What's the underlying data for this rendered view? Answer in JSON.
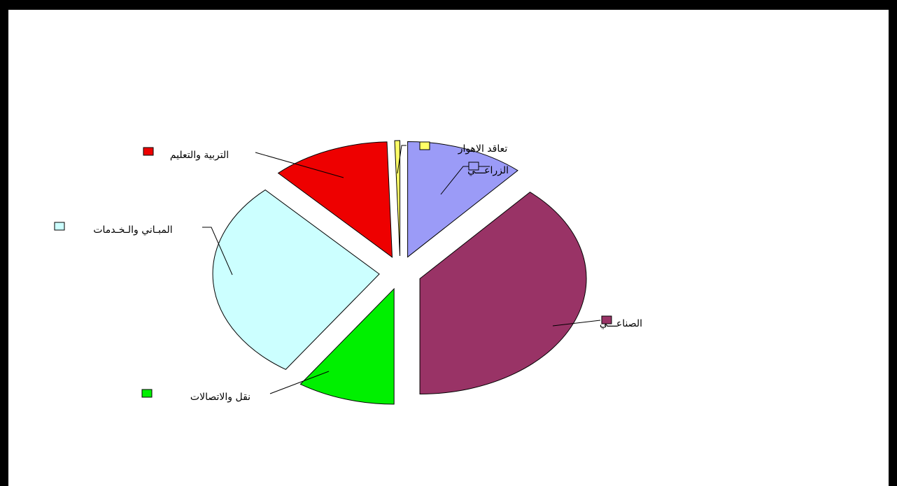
{
  "chart_data": {
    "type": "pie",
    "exploded": true,
    "slices": [
      {
        "label": "الزراعـــي",
        "value": 11.5,
        "color": "#9b9bf7"
      },
      {
        "label": "الصناعـــي",
        "value": 38.5,
        "color": "#993366"
      },
      {
        "label": "نقل والاتصالات",
        "value": 9.5,
        "color": "#00f000"
      },
      {
        "label": "المبـاني والـخـدمات",
        "value": 28.5,
        "color": "#ccffff"
      },
      {
        "label": "التربية والتعليم",
        "value": 11.5,
        "color": "#ee0000"
      },
      {
        "label": "تعاقد الاهوار",
        "value": 0.5,
        "color": "#ffff66"
      }
    ]
  }
}
